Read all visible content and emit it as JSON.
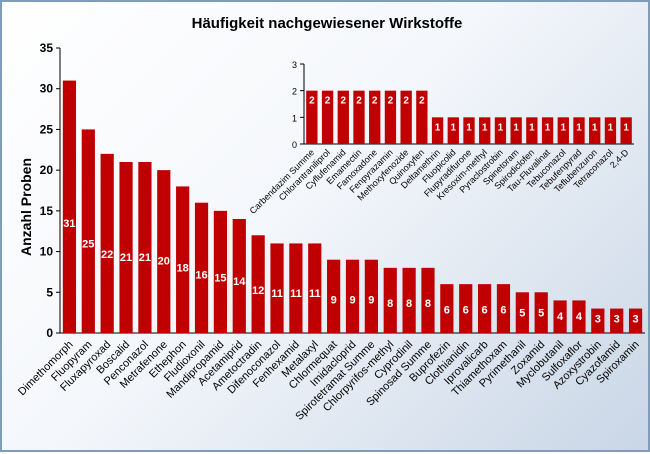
{
  "chart_data": [
    {
      "type": "bar",
      "title": "Häufigkeit nachgewiesener Wirkstoffe",
      "ylabel": "Anzahl Proben",
      "ylim": [
        0,
        35
      ],
      "yticks": [
        "0",
        "5",
        "10",
        "15",
        "20",
        "25",
        "30",
        "35"
      ],
      "grid": false,
      "color": "#c00000",
      "categories": [
        "Dimethomorph",
        "Fluopyram",
        "Fluxapyroxad",
        "Boscalid",
        "Penconazol",
        "Metrafenone",
        "Ethephon",
        "Fludioxonil",
        "Mandipropamid",
        "Acetamiprid",
        "Ametoctradin",
        "Difenoconazol",
        "Fenhexamid",
        "Metalaxyl",
        "Chlormequat",
        "Imidacloprid",
        "Spirotetramat Summe",
        "Chlorpyrifos-methyl",
        "Cyprodinil",
        "Spinosad Summe",
        "Buprofezin",
        "Clothianidin",
        "Iprovalicarb",
        "Thiamethoxam",
        "Pyrimethanil",
        "Zoxamid",
        "Myclobutanil",
        "Sulfoxaflor",
        "Azoxystrobin",
        "Cyazofamid",
        "Spiroxamin"
      ],
      "values": [
        31,
        25,
        22,
        21,
        21,
        20,
        18,
        16,
        15,
        14,
        12,
        11,
        11,
        11,
        9,
        9,
        9,
        8,
        8,
        8,
        6,
        6,
        6,
        6,
        5,
        5,
        4,
        4,
        3,
        3,
        3
      ]
    },
    {
      "type": "bar",
      "title": "",
      "ylim": [
        0,
        3
      ],
      "yticks": [
        "0",
        "1",
        "2",
        "3"
      ],
      "grid": false,
      "color": "#c00000",
      "categories": [
        "Carbendazim Summe",
        "Chlorantraniliprol",
        "Cyflufenamid",
        "Emamectin",
        "Famoxadone",
        "Fenpyrazamin",
        "Methoxyfenozide",
        "Quinoxyfen",
        "Deltamethrin",
        "Fluopicolid",
        "Flupyradifurone",
        "Kresoxim-methyl",
        "Pyraclostrobin",
        "Spinetoram",
        "Spirodiclofen",
        "Tau-Fluvalinat",
        "Tebuconazol",
        "Tebufenpyrad",
        "Teflubenzuron",
        "Tetraconazol",
        "2,4-D"
      ],
      "values": [
        2,
        2,
        2,
        2,
        2,
        2,
        2,
        2,
        1,
        1,
        1,
        1,
        1,
        1,
        1,
        1,
        1,
        1,
        1,
        1,
        1
      ]
    }
  ]
}
